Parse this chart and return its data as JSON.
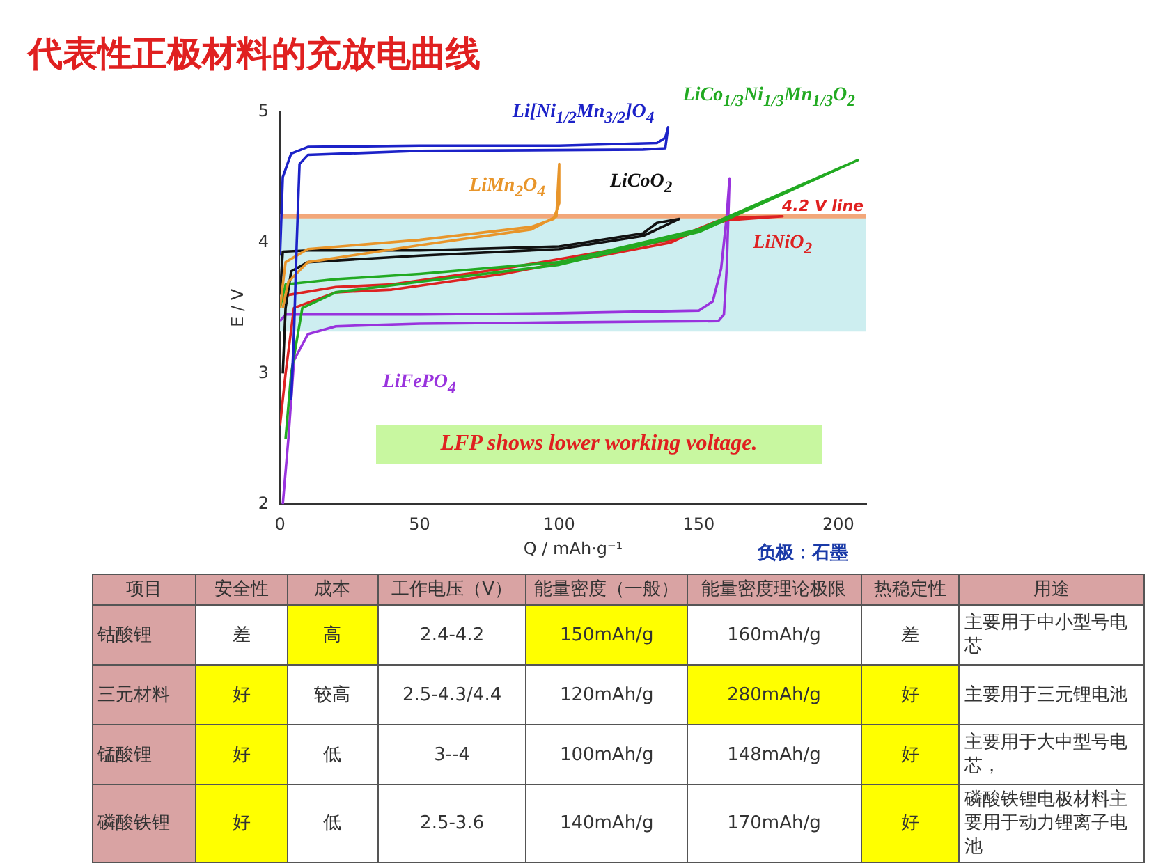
{
  "chart_data": [
    {
      "type": "line",
      "title": "代表性正极材料的充放电曲线",
      "xlabel": "Q / mAh·g⁻¹",
      "ylabel": "E / V",
      "xlim": [
        0,
        210
      ],
      "ylim": [
        2,
        5
      ],
      "xticks": [
        0,
        50,
        100,
        150,
        200
      ],
      "yticks": [
        2,
        3,
        4,
        5
      ],
      "grid": false,
      "legend": false,
      "ref_lines": [
        {
          "axis": "y",
          "value": 4.2,
          "label": "4.2 V line",
          "color": "#f2a77a"
        }
      ],
      "bands": [
        {
          "axis": "y",
          "from": 3.32,
          "to": 4.2,
          "color": "#cdeef0"
        }
      ],
      "annotations": [
        "LFP shows lower working voltage.",
        "负极：石墨"
      ],
      "series": [
        {
          "name": "Li[Ni$_{1/2}$Mn$_{3/2}$]O$_{4}$",
          "color": "#1c22c8",
          "x": [
            0,
            1,
            4,
            10,
            50,
            100,
            135,
            138,
            139,
            138,
            130,
            50,
            10,
            7,
            6,
            5,
            4
          ],
          "values": [
            3.9,
            4.5,
            4.68,
            4.73,
            4.74,
            4.74,
            4.76,
            4.8,
            4.88,
            4.72,
            4.71,
            4.7,
            4.67,
            4.6,
            4.0,
            3.3,
            2.8
          ]
        },
        {
          "name": "LiMn$_{2}$O$_{4}$",
          "color": "#e8952a",
          "x": [
            0,
            2,
            10,
            50,
            90,
            98,
            100,
            100,
            99,
            90,
            50,
            10,
            3,
            1
          ],
          "values": [
            3.5,
            3.85,
            3.95,
            4.02,
            4.12,
            4.18,
            4.3,
            4.6,
            4.2,
            4.1,
            3.98,
            3.85,
            3.7,
            3.5
          ]
        },
        {
          "name": "LiCoO$_{2}$",
          "color": "#111111",
          "x": [
            0,
            1,
            10,
            50,
            100,
            130,
            135,
            143,
            138,
            130,
            100,
            50,
            10,
            4,
            2,
            1
          ],
          "values": [
            3.6,
            3.93,
            3.94,
            3.94,
            3.97,
            4.07,
            4.15,
            4.18,
            4.13,
            4.05,
            3.95,
            3.9,
            3.85,
            3.78,
            3.5,
            3.0
          ]
        },
        {
          "name": "LiCo$_{1/3}$Ni$_{1/3}$Mn$_{1/3}$O$_{2}$",
          "color": "#22aa22",
          "x": [
            0,
            2,
            20,
            50,
            100,
            150,
            207,
            150,
            100,
            50,
            20,
            8,
            4,
            2
          ],
          "values": [
            3.5,
            3.68,
            3.72,
            3.76,
            3.85,
            4.1,
            4.63,
            4.08,
            3.83,
            3.7,
            3.62,
            3.5,
            3.0,
            2.5
          ]
        },
        {
          "name": "LiNiO$_{2}$",
          "color": "#dd2222",
          "x": [
            0,
            3,
            20,
            40,
            80,
            140,
            155,
            160,
            180,
            160,
            150,
            140,
            80,
            40,
            20,
            5,
            2,
            0
          ],
          "values": [
            3.55,
            3.6,
            3.66,
            3.68,
            3.8,
            4.02,
            4.15,
            4.19,
            4.2,
            4.17,
            4.1,
            4.0,
            3.76,
            3.64,
            3.62,
            3.5,
            3.0,
            2.6
          ]
        },
        {
          "name": "LiFePO$_{4}$",
          "color": "#9933dd",
          "x": [
            0,
            2,
            50,
            100,
            150,
            155,
            158,
            160,
            161,
            160,
            159,
            157,
            100,
            50,
            20,
            10,
            5,
            3,
            1
          ],
          "values": [
            3.4,
            3.45,
            3.45,
            3.46,
            3.48,
            3.55,
            3.8,
            4.2,
            4.49,
            3.8,
            3.45,
            3.4,
            3.39,
            3.38,
            3.36,
            3.3,
            3.1,
            2.5,
            2.0
          ]
        }
      ]
    },
    {
      "type": "other",
      "categories": [
        "项目",
        "安全性",
        "成本",
        "工作电压（V）",
        "能量密度（一般）",
        "能量密度理论极限",
        "热稳定性",
        "用途"
      ],
      "cell_labels": [
        [
          "钴酸锂",
          "差",
          "高",
          "2.4-4.2",
          "150mAh/g",
          "160mAh/g",
          "差",
          "主要用于中小型号电芯"
        ],
        [
          "三元材料",
          "好",
          "较高",
          "2.5-4.3/4.4",
          "120mAh/g",
          "280mAh/g",
          "好",
          "主要用于三元锂电池"
        ],
        [
          "锰酸锂",
          "好",
          "低",
          "3--4",
          "100mAh/g",
          "148mAh/g",
          "好",
          "主要用于大中型号电芯，"
        ],
        [
          "磷酸铁锂",
          "好",
          "低",
          "2.5-3.6",
          "140mAh/g",
          "170mAh/g",
          "好",
          "磷酸铁锂电极材料主要用于动力锂离子电池"
        ]
      ],
      "colors": [
        [
          "#d9a3a3",
          "#d9a3a3",
          "#d9a3a3",
          "#d9a3a3",
          "#d9a3a3",
          "#d9a3a3",
          "#d9a3a3",
          "#d9a3a3"
        ],
        [
          "#d9a3a3",
          "#ffffff",
          "#ffff00",
          "#ffffff",
          "#ffff00",
          "#ffffff",
          "#ffffff",
          "#ffffff"
        ],
        [
          "#d9a3a3",
          "#ffff00",
          "#ffffff",
          "#ffffff",
          "#ffffff",
          "#ffff00",
          "#ffff00",
          "#ffffff"
        ],
        [
          "#d9a3a3",
          "#ffff00",
          "#ffffff",
          "#ffffff",
          "#ffffff",
          "#ffffff",
          "#ffff00",
          "#ffffff"
        ],
        [
          "#d9a3a3",
          "#ffff00",
          "#ffffff",
          "#ffffff",
          "#ffffff",
          "#ffffff",
          "#ffff00",
          "#ffffff"
        ]
      ]
    }
  ]
}
